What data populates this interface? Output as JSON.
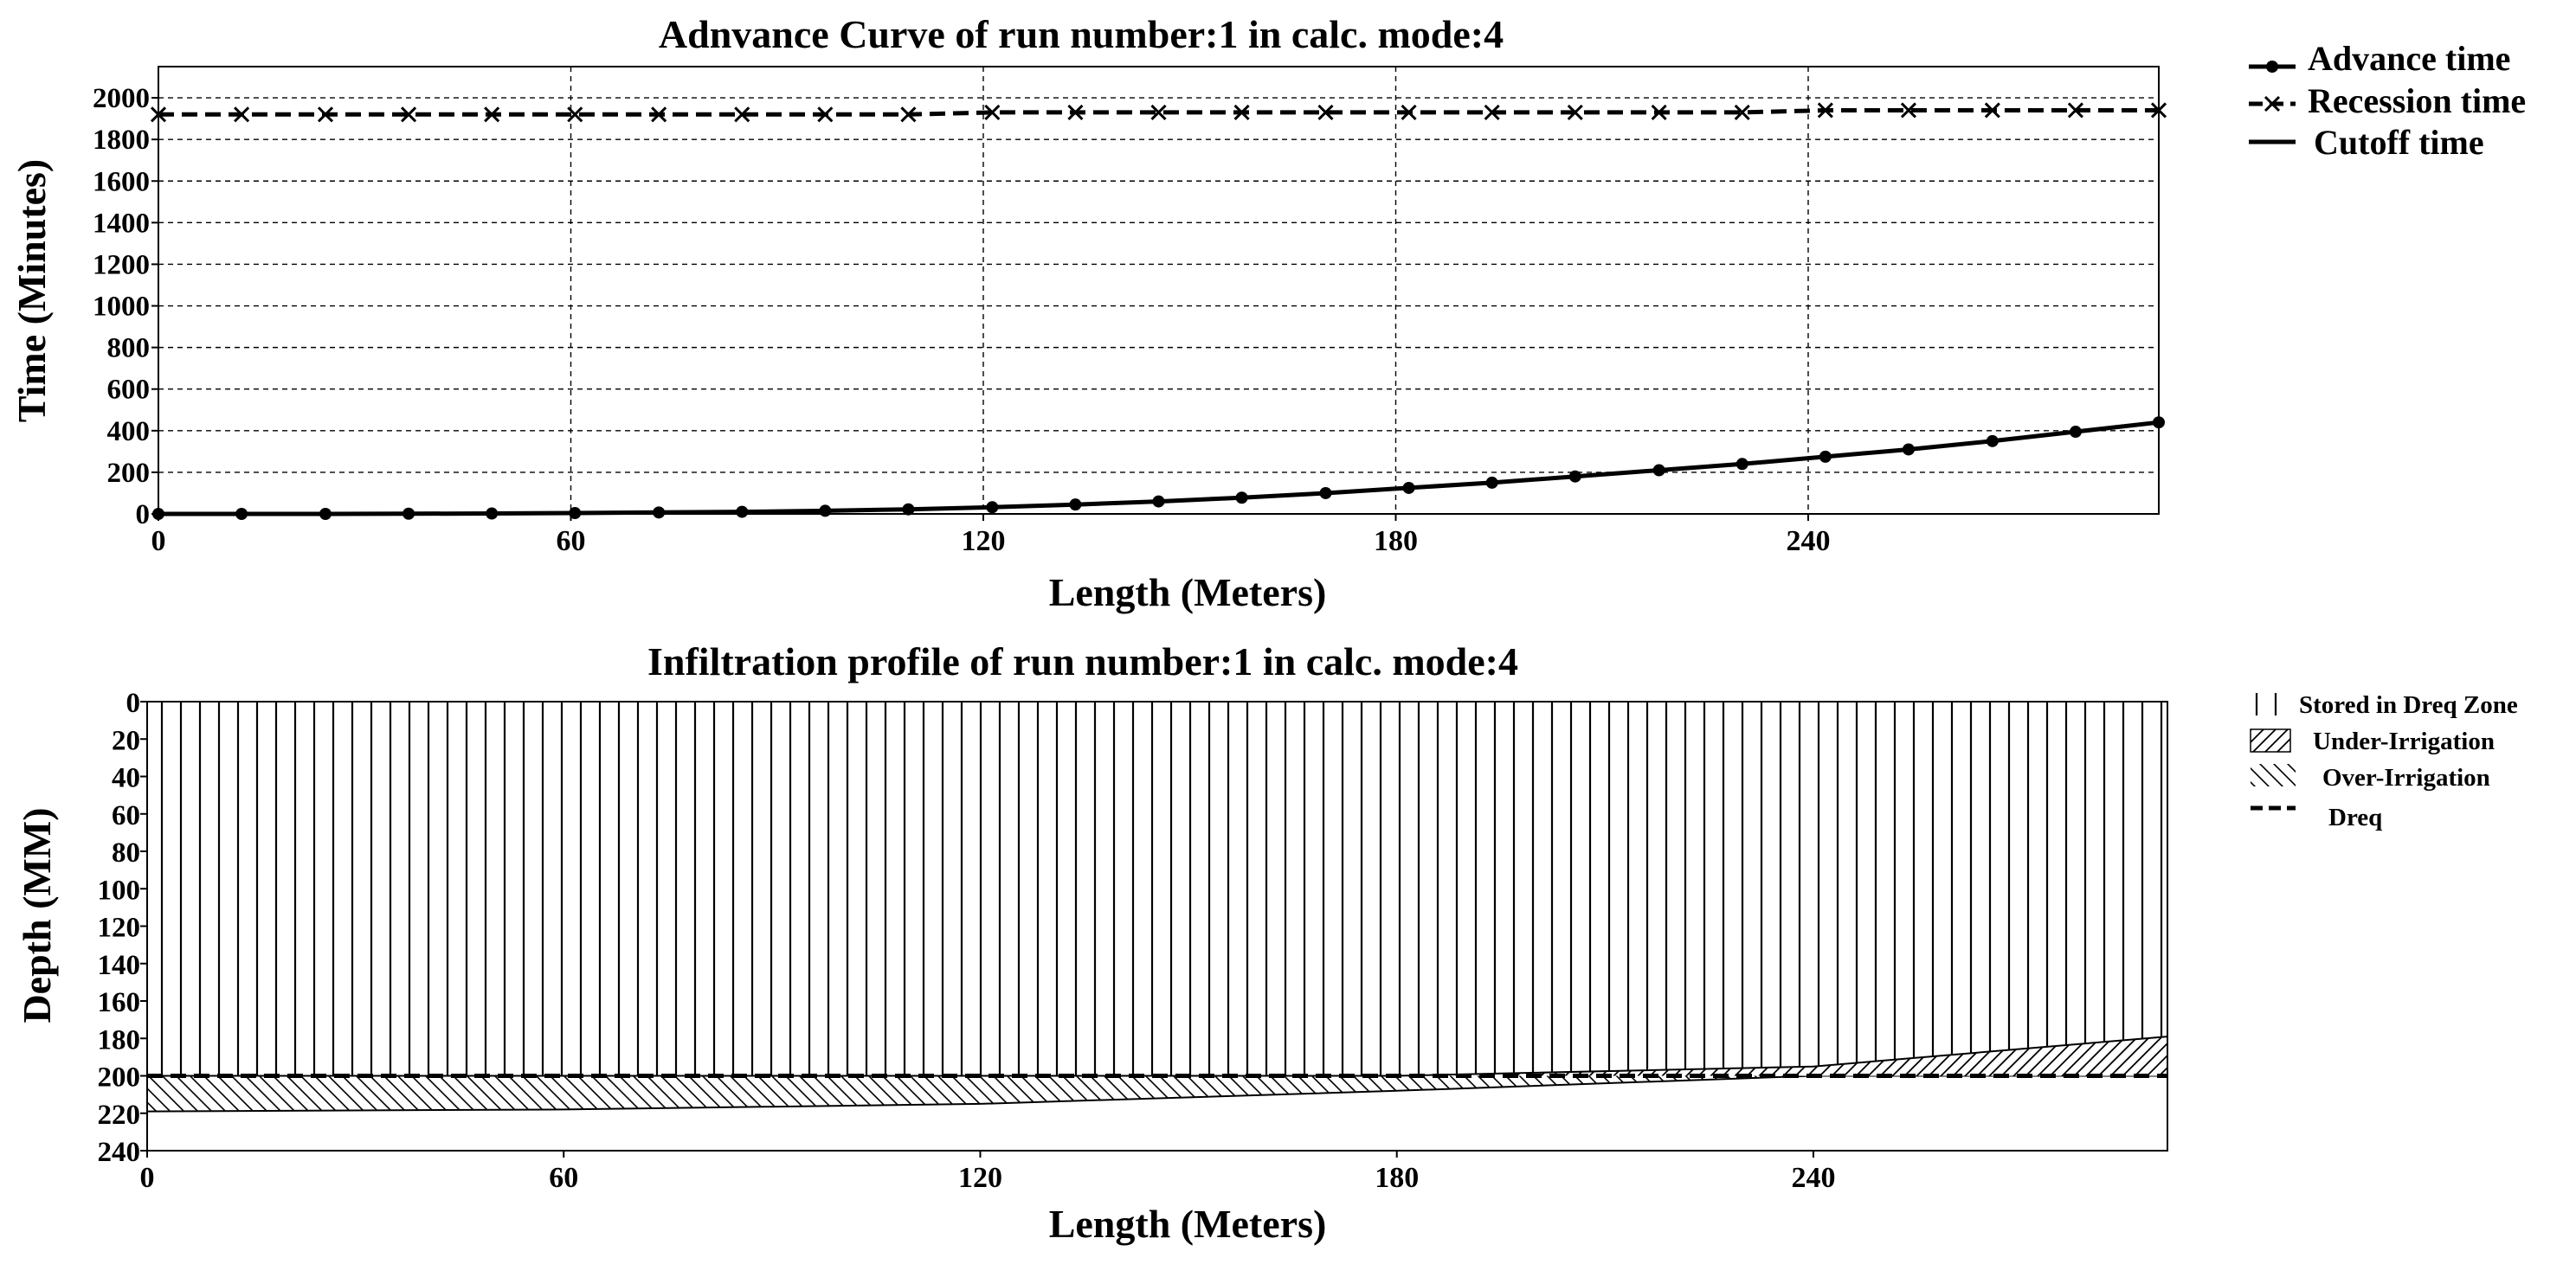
{
  "chart_data": [
    {
      "type": "line",
      "title": "Adnvance Curve of run number:1 in calc. mode:4",
      "xlabel": "Length (Meters)",
      "ylabel": "Time (Minutes)",
      "xlim": [
        0,
        291
      ],
      "ylim": [
        0,
        2150
      ],
      "xticks": [
        0,
        60,
        120,
        180,
        240
      ],
      "yticks": [
        0,
        200,
        400,
        600,
        800,
        1000,
        1200,
        1400,
        1600,
        1800,
        2000
      ],
      "grid": true,
      "legend": "top-right outside",
      "series": [
        {
          "name": "Advance time",
          "style": "solid-dot",
          "x": [
            0,
            12.1,
            24.3,
            36.4,
            48.5,
            60.6,
            72.8,
            84.9,
            97,
            109.1,
            121.3,
            133.4,
            145.5,
            157.6,
            169.8,
            181.9,
            194,
            206.1,
            218.3,
            230.4,
            242.5,
            254.6,
            266.8,
            278.9,
            291
          ],
          "y": [
            0,
            0,
            0,
            1,
            2,
            4,
            7,
            10,
            15,
            22,
            32,
            45,
            60,
            78,
            100,
            125,
            150,
            180,
            210,
            240,
            275,
            310,
            350,
            395,
            440
          ]
        },
        {
          "name": "Recession time",
          "style": "dashed-x",
          "x": [
            0,
            12.1,
            24.3,
            36.4,
            48.5,
            60.6,
            72.8,
            84.9,
            97,
            109.1,
            121.3,
            133.4,
            145.5,
            157.6,
            169.8,
            181.9,
            194,
            206.1,
            218.3,
            230.4,
            242.5,
            254.6,
            266.8,
            278.9,
            291
          ],
          "y": [
            1920,
            1920,
            1920,
            1920,
            1920,
            1920,
            1920,
            1920,
            1920,
            1920,
            1930,
            1930,
            1930,
            1930,
            1930,
            1930,
            1930,
            1930,
            1930,
            1930,
            1940,
            1940,
            1940,
            1940,
            1940
          ]
        },
        {
          "name": "Cutoff time",
          "style": "solid",
          "x": [],
          "y": []
        }
      ]
    },
    {
      "type": "area",
      "title": "Infiltration profile of run number:1 in calc. mode:4",
      "xlabel": "Length (Meters)",
      "ylabel": "Depth (MM)",
      "xlim": [
        0,
        291
      ],
      "ylim": [
        240,
        0
      ],
      "xticks": [
        0,
        60,
        120,
        180,
        240
      ],
      "yticks": [
        0,
        20,
        40,
        60,
        80,
        100,
        120,
        140,
        160,
        180,
        200,
        220,
        240
      ],
      "grid": false,
      "legend": "top-right outside",
      "dreq": 200,
      "infiltrated_depth": {
        "x": [
          0,
          60,
          120,
          180,
          240,
          291
        ],
        "y": [
          219,
          218,
          215,
          208,
          195,
          179
        ]
      },
      "series": [
        {
          "name": "Stored in Dreq Zone",
          "pattern": "vertical-hatch"
        },
        {
          "name": "Under-Irrigation",
          "pattern": "diagonal-hatch"
        },
        {
          "name": "Over-Irrigation",
          "pattern": "back-diagonal-hatch"
        },
        {
          "name": "Dreq",
          "pattern": "dashed-line"
        }
      ]
    }
  ]
}
